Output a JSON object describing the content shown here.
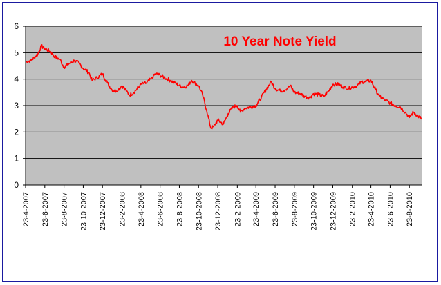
{
  "chart_data": {
    "type": "line",
    "title": "10 Year Note Yield",
    "xlabel": "",
    "ylabel": "",
    "ylim": [
      0,
      6
    ],
    "yticks": [
      "0",
      "1",
      "2",
      "3",
      "4",
      "5",
      "6"
    ],
    "xticks": [
      "23-4-2007",
      "23-6-2007",
      "23-8-2007",
      "23-10-2007",
      "23-12-2007",
      "23-2-2008",
      "23-4-2008",
      "23-6-2008",
      "23-8-2008",
      "23-10-2008",
      "23-12-2008",
      "23-2-2009",
      "23-4-2009",
      "23-6-2009",
      "23-8-2009",
      "23-10-2009",
      "23-12-2009",
      "23-2-2010",
      "23-4-2010",
      "23-6-2010",
      "23-8-2010"
    ],
    "grid": true,
    "legend": "none",
    "colors": {
      "plot_bg": "#c0c0c0",
      "line": "#ff0000",
      "title": "#ff0000",
      "grid": "#000000",
      "border": "#1a1aa0"
    },
    "series": [
      {
        "x": [
          "2007-04-23",
          "2007-05-10",
          "2007-06-01",
          "2007-06-12",
          "2007-06-23",
          "2007-07-10",
          "2007-07-25",
          "2007-08-10",
          "2007-08-23",
          "2007-09-10",
          "2007-09-25",
          "2007-10-10",
          "2007-10-23",
          "2007-11-10",
          "2007-11-20",
          "2007-12-05",
          "2007-12-23",
          "2008-01-08",
          "2008-01-22",
          "2008-02-05",
          "2008-02-23",
          "2008-03-08",
          "2008-03-18",
          "2008-04-01",
          "2008-04-23",
          "2008-05-10",
          "2008-05-25",
          "2008-06-08",
          "2008-06-23",
          "2008-07-08",
          "2008-07-25",
          "2008-08-10",
          "2008-08-23",
          "2008-09-05",
          "2008-09-18",
          "2008-10-01",
          "2008-10-12",
          "2008-10-23",
          "2008-11-05",
          "2008-11-18",
          "2008-12-01",
          "2008-12-10",
          "2008-12-23",
          "2009-01-10",
          "2009-01-25",
          "2009-02-10",
          "2009-02-23",
          "2009-03-05",
          "2009-03-18",
          "2009-04-05",
          "2009-04-23",
          "2009-05-10",
          "2009-05-25",
          "2009-06-10",
          "2009-06-23",
          "2009-07-10",
          "2009-07-25",
          "2009-08-10",
          "2009-08-23",
          "2009-09-10",
          "2009-09-25",
          "2009-10-10",
          "2009-10-23",
          "2009-11-10",
          "2009-11-25",
          "2009-12-10",
          "2009-12-23",
          "2010-01-10",
          "2010-01-25",
          "2010-02-10",
          "2010-02-23",
          "2010-03-10",
          "2010-03-25",
          "2010-04-05",
          "2010-04-23",
          "2010-05-08",
          "2010-05-20",
          "2010-06-08",
          "2010-06-23",
          "2010-07-10",
          "2010-07-25",
          "2010-08-10",
          "2010-08-23",
          "2010-09-05",
          "2010-09-20",
          "2010-10-01"
        ],
        "values": [
          4.65,
          4.7,
          4.95,
          5.25,
          5.15,
          5.05,
          4.85,
          4.75,
          4.45,
          4.6,
          4.7,
          4.6,
          4.4,
          4.25,
          3.95,
          4.05,
          4.2,
          3.85,
          3.6,
          3.55,
          3.75,
          3.55,
          3.4,
          3.5,
          3.8,
          3.85,
          4.0,
          4.2,
          4.15,
          4.05,
          3.95,
          3.85,
          3.75,
          3.7,
          3.75,
          3.95,
          3.85,
          3.75,
          3.4,
          2.8,
          2.15,
          2.2,
          2.45,
          2.3,
          2.7,
          2.95,
          3.0,
          2.75,
          2.9,
          2.95,
          3.0,
          3.3,
          3.6,
          3.9,
          3.65,
          3.55,
          3.6,
          3.75,
          3.5,
          3.45,
          3.35,
          3.3,
          3.45,
          3.4,
          3.35,
          3.55,
          3.8,
          3.8,
          3.7,
          3.65,
          3.7,
          3.75,
          3.9,
          3.9,
          3.95,
          3.6,
          3.35,
          3.2,
          3.1,
          3.0,
          2.95,
          2.75,
          2.55,
          2.75,
          2.6,
          2.5
        ]
      }
    ]
  }
}
